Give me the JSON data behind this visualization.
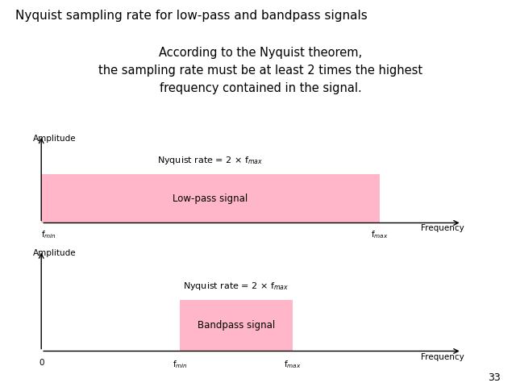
{
  "title": "Nyquist sampling rate for low-pass and bandpass signals",
  "title_fontsize": 11,
  "green_box_text": "According to the Nyquist theorem,\nthe sampling rate must be at least 2 times the highest\nfrequency contained in the signal.",
  "green_color": "#7FFF00",
  "pink_color": "#FFB6C8",
  "background_color": "#FFFFFF",
  "text_color": "#000000",
  "page_number": "33",
  "lp_nyquist_label": "Nyquist rate = 2 × f$_{max}$",
  "lp_signal_label": "Low-pass signal",
  "lp_amplitude_label": "Amplitude",
  "lp_freq_label": "Frequency",
  "lp_fmin_label": "f$_{min}$",
  "lp_fmax_label": "f$_{max}$",
  "bp_nyquist_label": "Nyquist rate = 2 × f$_{max}$",
  "bp_signal_label": "Bandpass signal",
  "bp_amplitude_label": "Amplitude",
  "bp_freq_label": "Frequency",
  "bp_zero_label": "0",
  "bp_fmin_label": "f$_{min}$",
  "bp_fmax_label": "f$_{max}$"
}
